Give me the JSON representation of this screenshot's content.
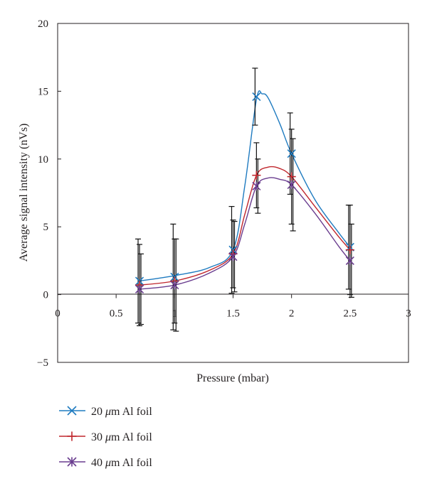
{
  "chart_data": {
    "type": "line",
    "title": "",
    "xlabel": "Pressure (mbar)",
    "ylabel": "Average signal intensity (nVs)",
    "xlim": [
      0,
      3
    ],
    "ylim": [
      -5,
      20
    ],
    "xticks": [
      0,
      0.5,
      1,
      1.5,
      2,
      2.5,
      3
    ],
    "xtick_labels": [
      "0",
      "0.5",
      "1",
      "1.5",
      "2",
      "2.5",
      "3"
    ],
    "yticks": [
      -5,
      0,
      5,
      10,
      15,
      20
    ],
    "ytick_labels": [
      "−5",
      "0",
      "5",
      "10",
      "15",
      "20"
    ],
    "grid": false,
    "legend_position": "bottom-left, below plot",
    "series": [
      {
        "name": "20 μm Al foil",
        "legend_prefix": "20 ",
        "legend_unit_symbol": "μ",
        "legend_suffix": "m Al foil",
        "color": "#1f7bc0",
        "marker": "x",
        "x": [
          0.7,
          1.0,
          1.5,
          1.7,
          2.0,
          2.5
        ],
        "y": [
          1.0,
          1.3,
          3.3,
          14.6,
          10.4,
          3.5
        ],
        "err": [
          3.1,
          3.9,
          3.2,
          2.1,
          3.0,
          3.1
        ]
      },
      {
        "name": "30 μm Al foil",
        "legend_prefix": "30 ",
        "legend_unit_symbol": "μ",
        "legend_suffix": "m Al foil",
        "color": "#c0272d",
        "marker": "plus",
        "x": [
          0.7,
          1.0,
          1.5,
          1.7,
          2.0,
          2.5
        ],
        "y": [
          0.7,
          1.0,
          3.0,
          8.8,
          8.7,
          3.3
        ],
        "err": [
          3.0,
          3.1,
          2.5,
          2.4,
          3.5,
          3.3
        ]
      },
      {
        "name": "40 μm Al foil",
        "legend_prefix": "40 ",
        "legend_unit_symbol": "μ",
        "legend_suffix": "m Al foil",
        "color": "#6a3d8f",
        "marker": "star",
        "x": [
          0.7,
          1.0,
          1.5,
          1.7,
          2.0,
          2.5
        ],
        "y": [
          0.4,
          0.7,
          2.8,
          8.0,
          8.1,
          2.5
        ],
        "err": [
          2.6,
          3.4,
          2.6,
          2.0,
          3.4,
          2.7
        ]
      }
    ],
    "fit_curves": [
      {
        "series": "20 μm Al foil",
        "x": [
          0.7,
          1.0,
          1.3,
          1.5,
          1.6,
          1.7,
          1.75,
          1.8,
          1.9,
          2.0,
          2.2,
          2.4,
          2.5
        ],
        "y": [
          1.0,
          1.4,
          2.0,
          3.3,
          8.0,
          14.4,
          14.8,
          14.5,
          12.6,
          10.4,
          7.0,
          4.6,
          3.5
        ]
      },
      {
        "series": "30 μm Al foil",
        "x": [
          0.7,
          1.0,
          1.3,
          1.5,
          1.6,
          1.7,
          1.8,
          1.9,
          2.0,
          2.2,
          2.4,
          2.5
        ],
        "y": [
          0.7,
          1.0,
          1.8,
          3.0,
          5.9,
          8.8,
          9.4,
          9.3,
          8.7,
          6.5,
          4.3,
          3.3
        ]
      },
      {
        "series": "40 μm Al foil",
        "x": [
          0.7,
          1.0,
          1.3,
          1.5,
          1.6,
          1.7,
          1.8,
          1.9,
          2.0,
          2.2,
          2.4,
          2.5
        ],
        "y": [
          0.4,
          0.7,
          1.6,
          2.8,
          5.2,
          8.0,
          8.6,
          8.5,
          8.1,
          6.0,
          3.6,
          2.5
        ]
      }
    ]
  }
}
